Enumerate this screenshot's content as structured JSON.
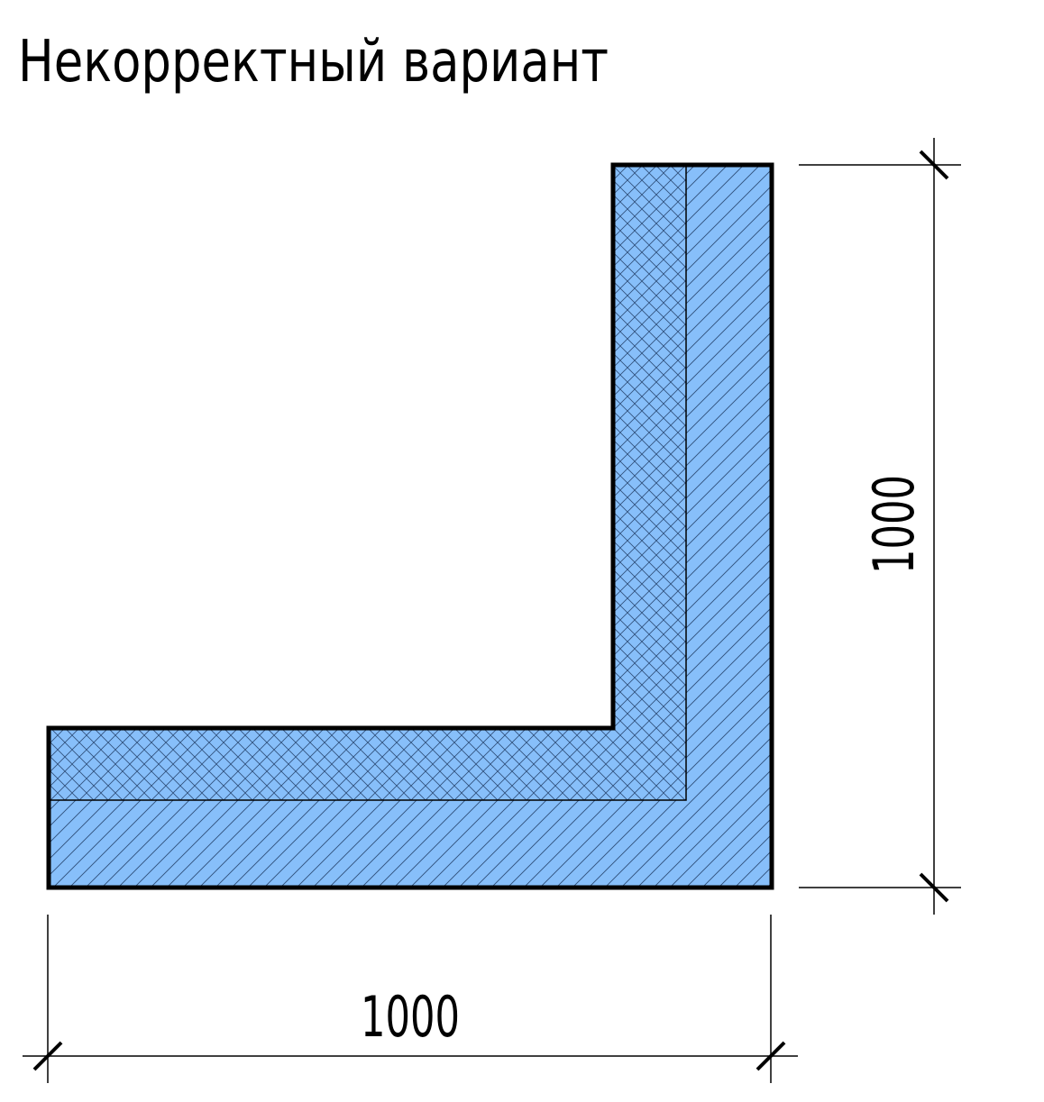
{
  "title": "Некорректный вариант",
  "dimensions": {
    "horizontal": "1000",
    "vertical": "1000"
  },
  "colors": {
    "fill": "#87bffa",
    "hatch": "#2f4f7a",
    "outline": "#000000",
    "background": "#ffffff"
  },
  "layers": {
    "inner": "cross-hatch",
    "outer": "diagonal-hatch"
  }
}
